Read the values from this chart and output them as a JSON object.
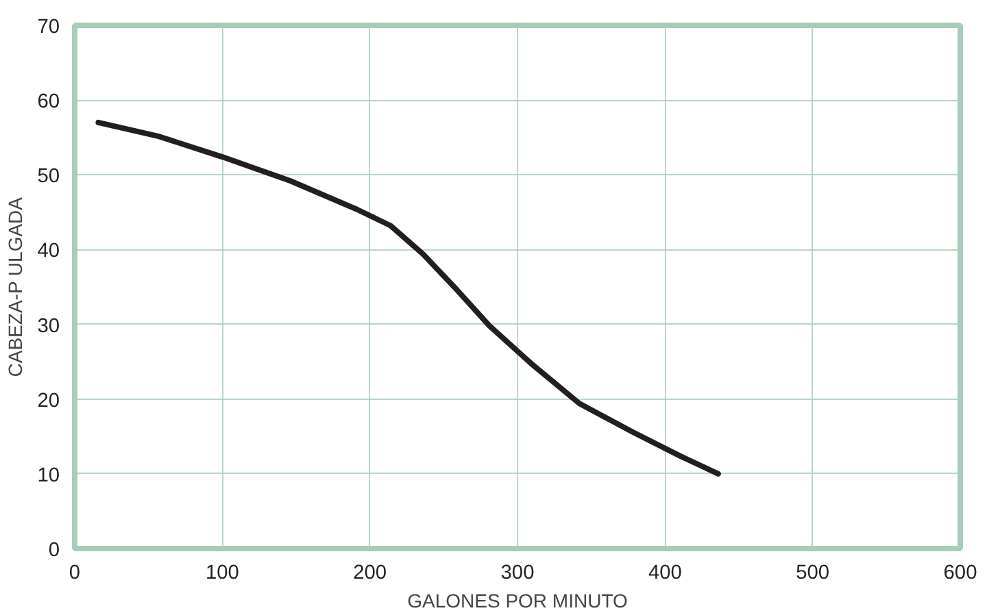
{
  "chart_data": {
    "type": "line",
    "xlabel": "GALONES POR MINUTO",
    "ylabel": "CABEZA-P ULGADA",
    "x": [
      16,
      56,
      100,
      146,
      191,
      214,
      236,
      259,
      281,
      309,
      342,
      378,
      410,
      436
    ],
    "series": [
      {
        "color": "#231f20",
        "values": [
          57.0,
          55.2,
          52.4,
          49.2,
          45.4,
          43.2,
          39.4,
          34.6,
          29.8,
          24.8,
          19.4,
          15.6,
          12.4,
          10.0
        ]
      }
    ],
    "xlim": [
      0,
      600
    ],
    "ylim": [
      0,
      70
    ],
    "xticks": [
      0,
      100,
      200,
      300,
      400,
      500,
      600
    ],
    "yticks": [
      0,
      10,
      20,
      30,
      40,
      50,
      60,
      70
    ],
    "grid": true,
    "line_style": "solid"
  }
}
